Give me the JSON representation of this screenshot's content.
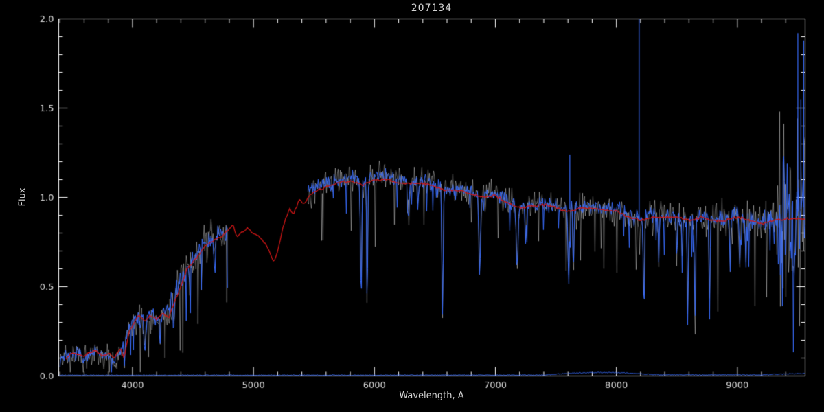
{
  "chart_data": {
    "type": "line",
    "title": "207134",
    "xlabel": "Wavelength, A",
    "ylabel": "Flux",
    "xlim": [
      3390,
      9560
    ],
    "ylim": [
      0,
      2
    ],
    "xticks": [
      4000,
      5000,
      6000,
      7000,
      8000,
      9000
    ],
    "xtick_labels": [
      "4000",
      "5000",
      "6000",
      "7000",
      "8000",
      "9000"
    ],
    "yticks": [
      0,
      0.5,
      1,
      1.5,
      2
    ],
    "ytick_labels": [
      "0.0",
      "0.5",
      "1.0",
      "1.5",
      "2.0"
    ],
    "x_minor_step": 200,
    "y_minor_step": 0.1,
    "grid": false,
    "legend": "none",
    "background": "#000000",
    "axis_color": "#ffffff",
    "label_color": "#dcdcdc",
    "series": [
      {
        "name": "observed-spectrum",
        "color": "#3a6eff",
        "style": "noisy-line",
        "segments": [
          [
            3400,
            4790
          ],
          [
            5450,
            9560
          ]
        ],
        "anchors": [
          [
            3400,
            0.09
          ],
          [
            3450,
            0.12
          ],
          [
            3500,
            0.1
          ],
          [
            3550,
            0.14
          ],
          [
            3600,
            0.1
          ],
          [
            3650,
            0.12
          ],
          [
            3700,
            0.14
          ],
          [
            3750,
            0.1
          ],
          [
            3800,
            0.12
          ],
          [
            3850,
            0.08
          ],
          [
            3900,
            0.14
          ],
          [
            3950,
            0.22
          ],
          [
            4000,
            0.3
          ],
          [
            4050,
            0.33
          ],
          [
            4100,
            0.31
          ],
          [
            4150,
            0.33
          ],
          [
            4200,
            0.32
          ],
          [
            4250,
            0.34
          ],
          [
            4300,
            0.36
          ],
          [
            4350,
            0.45
          ],
          [
            4400,
            0.52
          ],
          [
            4450,
            0.62
          ],
          [
            4500,
            0.66
          ],
          [
            4550,
            0.7
          ],
          [
            4600,
            0.74
          ],
          [
            4650,
            0.76
          ],
          [
            4700,
            0.78
          ],
          [
            4750,
            0.79
          ],
          [
            4790,
            0.8
          ],
          [
            5450,
            1.02
          ],
          [
            5500,
            1.05
          ],
          [
            5550,
            1.07
          ],
          [
            5600,
            1.08
          ],
          [
            5650,
            1.09
          ],
          [
            5700,
            1.1
          ],
          [
            5750,
            1.11
          ],
          [
            5800,
            1.12
          ],
          [
            5850,
            1.1
          ],
          [
            5900,
            1.08
          ],
          [
            5950,
            1.1
          ],
          [
            6000,
            1.12
          ],
          [
            6050,
            1.13
          ],
          [
            6100,
            1.12
          ],
          [
            6150,
            1.11
          ],
          [
            6200,
            1.1
          ],
          [
            6300,
            1.09
          ],
          [
            6400,
            1.09
          ],
          [
            6500,
            1.07
          ],
          [
            6550,
            1.05
          ],
          [
            6600,
            1.05
          ],
          [
            6700,
            1.05
          ],
          [
            6800,
            1.03
          ],
          [
            6900,
            1.0
          ],
          [
            6950,
            1.02
          ],
          [
            7000,
            1.02
          ],
          [
            7050,
            1.0
          ],
          [
            7100,
            0.98
          ],
          [
            7200,
            0.95
          ],
          [
            7300,
            0.96
          ],
          [
            7400,
            0.97
          ],
          [
            7500,
            0.95
          ],
          [
            7600,
            0.93
          ],
          [
            7700,
            0.95
          ],
          [
            7800,
            0.95
          ],
          [
            7900,
            0.94
          ],
          [
            8000,
            0.93
          ],
          [
            8050,
            0.92
          ],
          [
            8100,
            0.9
          ],
          [
            8200,
            0.88
          ],
          [
            8300,
            0.9
          ],
          [
            8400,
            0.9
          ],
          [
            8500,
            0.89
          ],
          [
            8600,
            0.88
          ],
          [
            8700,
            0.9
          ],
          [
            8800,
            0.88
          ],
          [
            8900,
            0.88
          ],
          [
            9000,
            0.9
          ],
          [
            9100,
            0.88
          ],
          [
            9200,
            0.86
          ],
          [
            9300,
            0.88
          ],
          [
            9400,
            0.92
          ],
          [
            9450,
            0.9
          ],
          [
            9500,
            0.92
          ],
          [
            9560,
            0.95
          ]
        ],
        "noise": [
          [
            3400,
            3950,
            0.042
          ],
          [
            3950,
            4300,
            0.055
          ],
          [
            4300,
            4790,
            0.08
          ],
          [
            5450,
            6300,
            0.05
          ],
          [
            6300,
            7600,
            0.05
          ],
          [
            7600,
            8600,
            0.055
          ],
          [
            8600,
            9330,
            0.07
          ],
          [
            9330,
            9560,
            0.38
          ]
        ],
        "absorption": [
          [
            3934,
            0.1,
            10
          ],
          [
            4101,
            0.15,
            14
          ],
          [
            4227,
            0.12,
            10
          ],
          [
            4340,
            0.16,
            14
          ],
          [
            4470,
            0.15,
            10
          ],
          [
            4680,
            0.18,
            10
          ],
          [
            5890,
            0.6,
            12
          ],
          [
            5940,
            0.62,
            10
          ],
          [
            6283,
            0.22,
            10
          ],
          [
            6360,
            0.15,
            8
          ],
          [
            6563,
            0.64,
            12
          ],
          [
            6870,
            0.45,
            14
          ],
          [
            7180,
            0.33,
            16
          ],
          [
            7250,
            0.22,
            10
          ],
          [
            7605,
            0.4,
            12
          ],
          [
            7645,
            0.35,
            10
          ],
          [
            8227,
            0.44,
            12
          ],
          [
            8350,
            0.22,
            8
          ],
          [
            8500,
            0.28,
            8
          ],
          [
            8545,
            0.28,
            8
          ],
          [
            8590,
            0.55,
            10
          ],
          [
            8650,
            0.6,
            10
          ],
          [
            8770,
            0.52,
            10
          ],
          [
            8940,
            0.28,
            10
          ],
          [
            9020,
            0.33,
            10
          ],
          [
            9070,
            0.28,
            8
          ],
          [
            9470,
            0.62,
            8
          ],
          [
            9515,
            0.55,
            6
          ]
        ],
        "spikes_up": [
          [
            8188,
            2.05
          ],
          [
            7615,
            1.24
          ],
          [
            9500,
            1.92
          ],
          [
            9525,
            1.55
          ],
          [
            9548,
            1.88
          ]
        ]
      },
      {
        "name": "error-fuzz",
        "color": "#ffffff",
        "style": "noisy-halo",
        "follows": "observed-spectrum",
        "amp_scale": 1.8,
        "alpha": 0.55
      },
      {
        "name": "template-fit",
        "color": "#d01616",
        "style": "smooth-line",
        "noise_amp": 0.008,
        "anchors": [
          [
            3450,
            0.1
          ],
          [
            3500,
            0.13
          ],
          [
            3550,
            0.12
          ],
          [
            3600,
            0.11
          ],
          [
            3650,
            0.13
          ],
          [
            3700,
            0.14
          ],
          [
            3750,
            0.11
          ],
          [
            3800,
            0.13
          ],
          [
            3850,
            0.1
          ],
          [
            3900,
            0.16
          ],
          [
            3930,
            0.1
          ],
          [
            3970,
            0.24
          ],
          [
            4000,
            0.28
          ],
          [
            4050,
            0.34
          ],
          [
            4100,
            0.31
          ],
          [
            4150,
            0.34
          ],
          [
            4200,
            0.32
          ],
          [
            4250,
            0.35
          ],
          [
            4300,
            0.33
          ],
          [
            4340,
            0.4
          ],
          [
            4400,
            0.5
          ],
          [
            4450,
            0.6
          ],
          [
            4500,
            0.64
          ],
          [
            4550,
            0.68
          ],
          [
            4600,
            0.73
          ],
          [
            4650,
            0.75
          ],
          [
            4700,
            0.77
          ],
          [
            4750,
            0.79
          ],
          [
            4800,
            0.82
          ],
          [
            4830,
            0.85
          ],
          [
            4861,
            0.78
          ],
          [
            4900,
            0.8
          ],
          [
            4950,
            0.83
          ],
          [
            5000,
            0.8
          ],
          [
            5050,
            0.78
          ],
          [
            5100,
            0.74
          ],
          [
            5170,
            0.64
          ],
          [
            5200,
            0.7
          ],
          [
            5250,
            0.85
          ],
          [
            5300,
            0.94
          ],
          [
            5330,
            0.9
          ],
          [
            5380,
            0.99
          ],
          [
            5420,
            0.96
          ],
          [
            5450,
            1.0
          ],
          [
            5500,
            1.03
          ],
          [
            5600,
            1.06
          ],
          [
            5700,
            1.08
          ],
          [
            5800,
            1.09
          ],
          [
            5900,
            1.07
          ],
          [
            6000,
            1.1
          ],
          [
            6100,
            1.1
          ],
          [
            6200,
            1.08
          ],
          [
            6300,
            1.08
          ],
          [
            6400,
            1.08
          ],
          [
            6500,
            1.06
          ],
          [
            6600,
            1.04
          ],
          [
            6700,
            1.04
          ],
          [
            6800,
            1.02
          ],
          [
            6900,
            1.0
          ],
          [
            7000,
            1.01
          ],
          [
            7100,
            0.97
          ],
          [
            7200,
            0.94
          ],
          [
            7300,
            0.95
          ],
          [
            7400,
            0.96
          ],
          [
            7500,
            0.94
          ],
          [
            7600,
            0.92
          ],
          [
            7700,
            0.94
          ],
          [
            7800,
            0.94
          ],
          [
            7900,
            0.93
          ],
          [
            8000,
            0.92
          ],
          [
            8100,
            0.89
          ],
          [
            8200,
            0.87
          ],
          [
            8300,
            0.89
          ],
          [
            8400,
            0.89
          ],
          [
            8500,
            0.89
          ],
          [
            8600,
            0.87
          ],
          [
            8700,
            0.89
          ],
          [
            8800,
            0.87
          ],
          [
            8900,
            0.87
          ],
          [
            9000,
            0.89
          ],
          [
            9100,
            0.87
          ],
          [
            9200,
            0.85
          ],
          [
            9300,
            0.87
          ],
          [
            9400,
            0.88
          ],
          [
            9500,
            0.88
          ],
          [
            9560,
            0.88
          ]
        ]
      },
      {
        "name": "sky-baseline",
        "color": "#3a6eff",
        "style": "noisy-line",
        "noise_amp": 0.003,
        "anchors": [
          [
            3400,
            0.004
          ],
          [
            7400,
            0.005
          ],
          [
            7500,
            0.01
          ],
          [
            7650,
            0.016
          ],
          [
            7850,
            0.02
          ],
          [
            8050,
            0.018
          ],
          [
            8200,
            0.012
          ],
          [
            8350,
            0.007
          ],
          [
            9200,
            0.006
          ],
          [
            9350,
            0.01
          ],
          [
            9560,
            0.014
          ]
        ]
      }
    ]
  }
}
